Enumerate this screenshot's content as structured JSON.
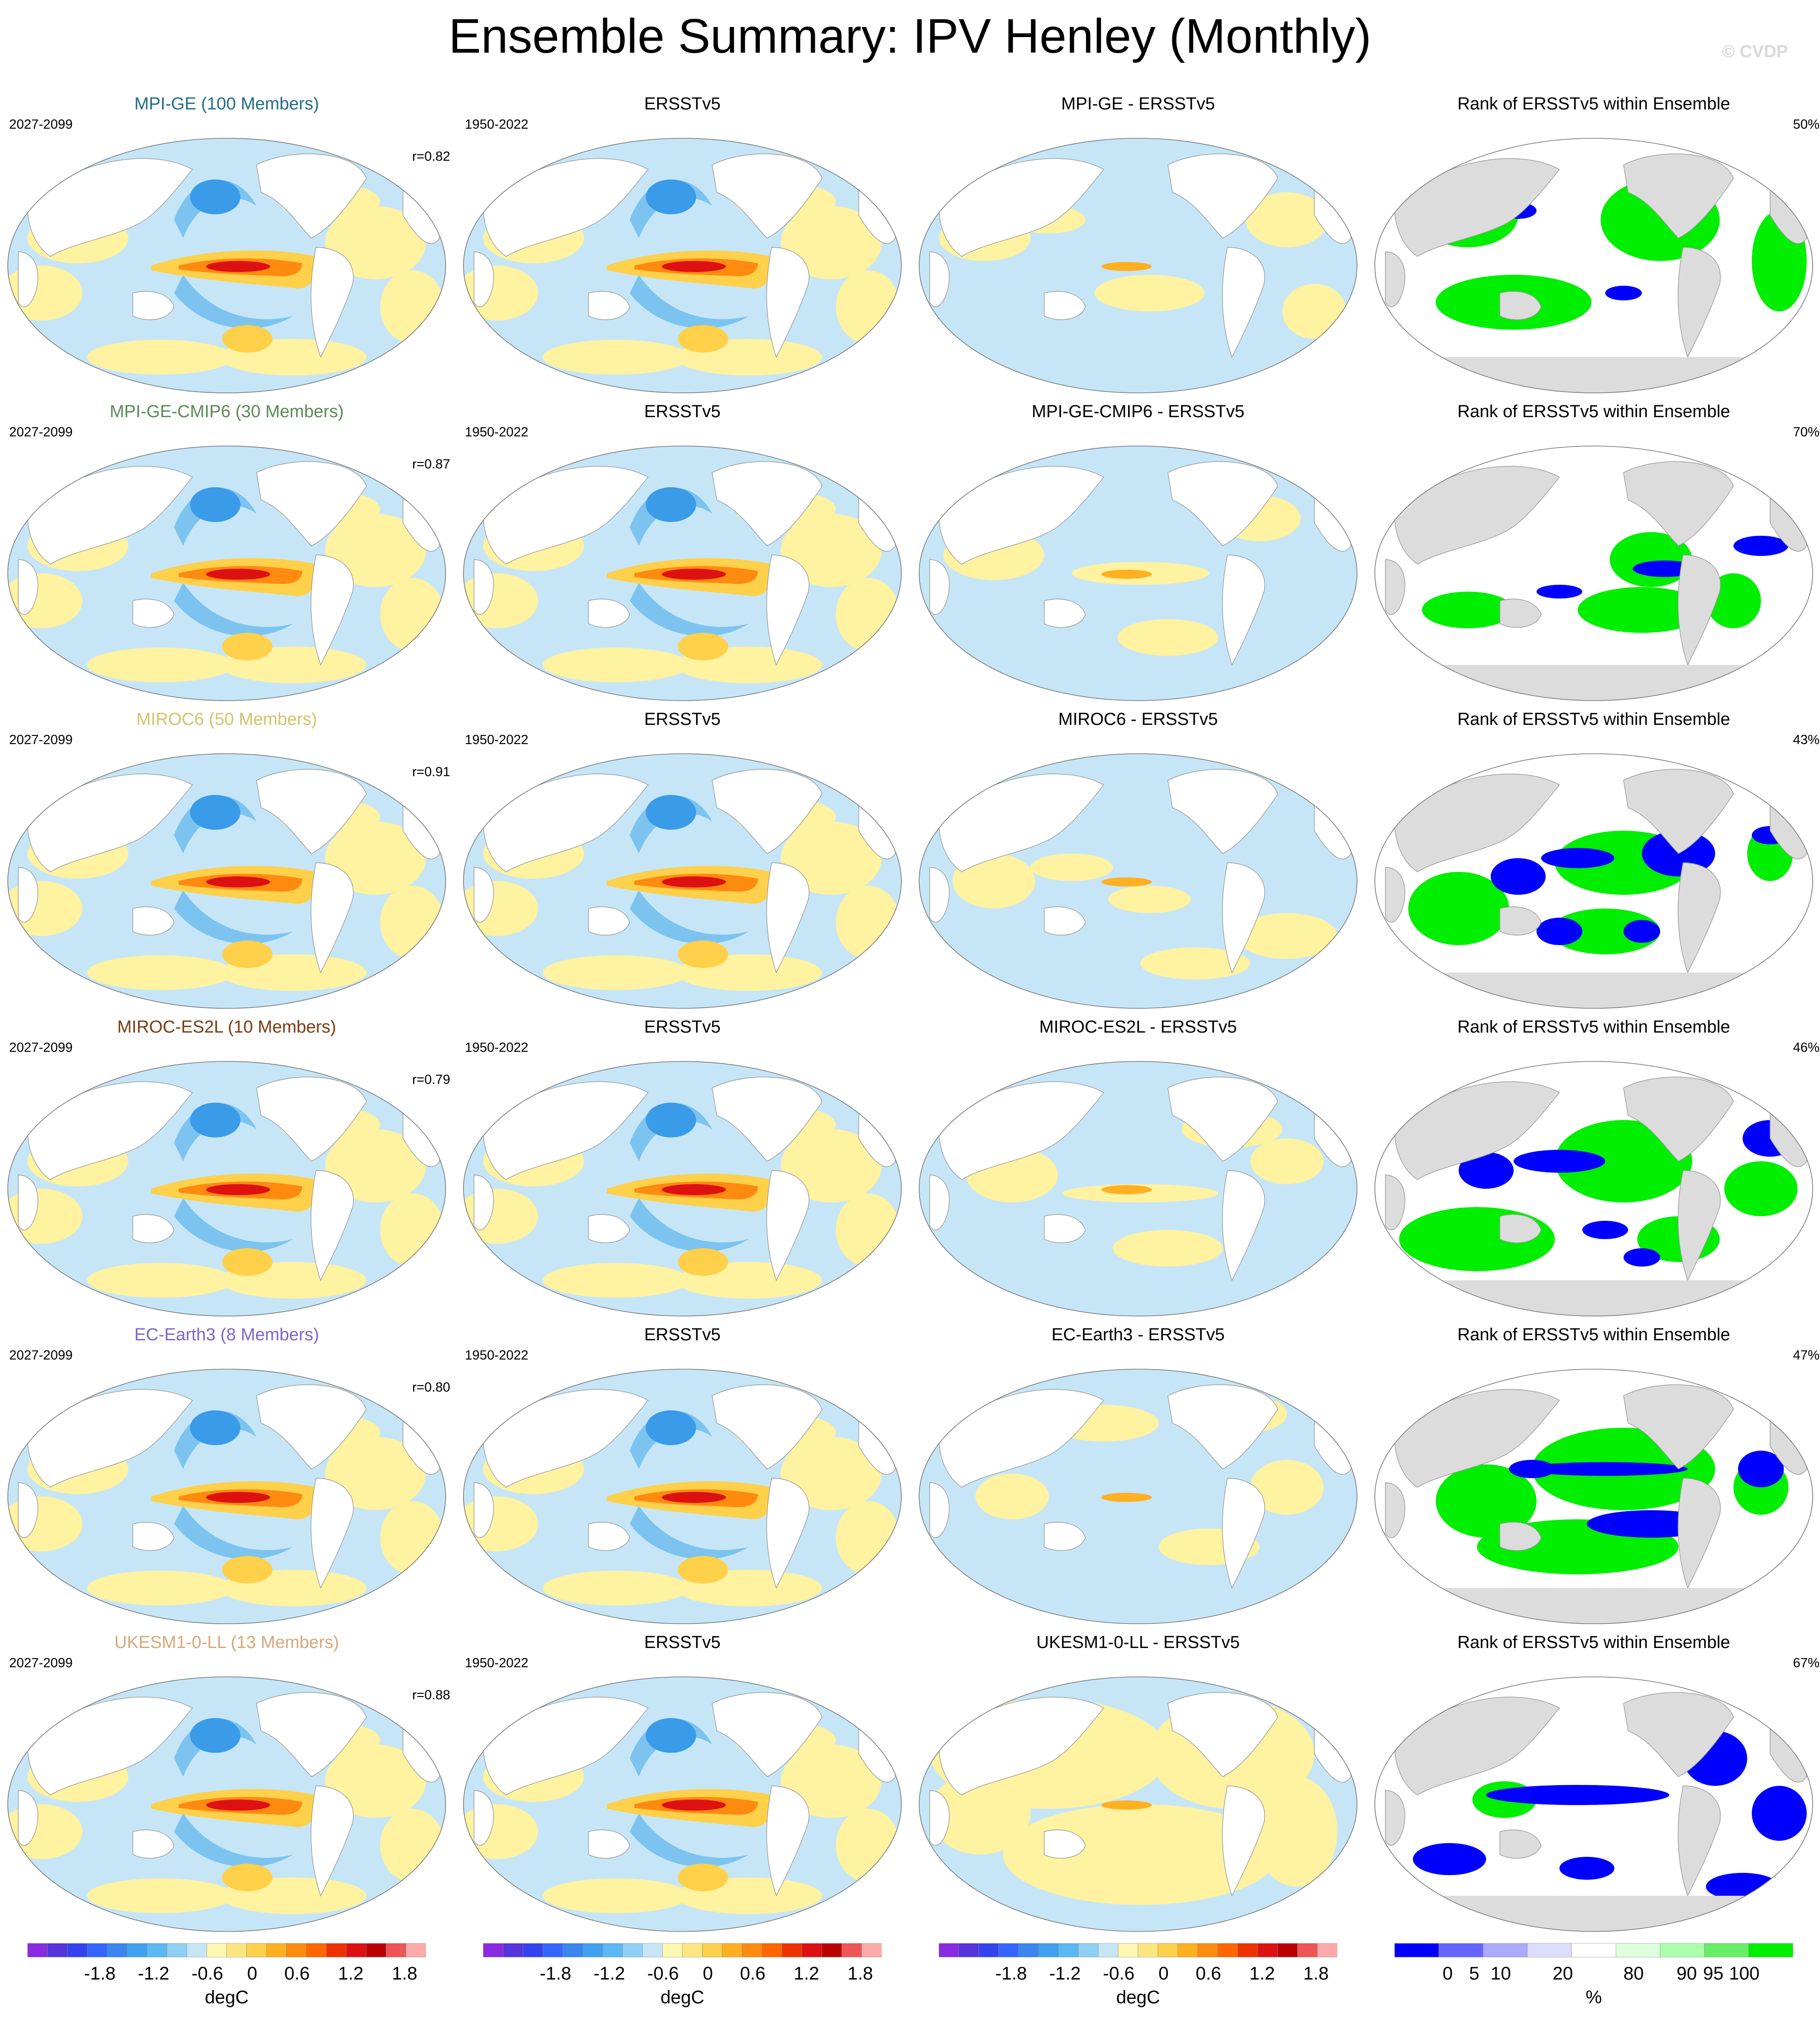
{
  "title": "Ensemble Summary: IPV Henley (Monthly)",
  "watermark": "© CVDP",
  "columns": {
    "obs_title": "ERSSTv5",
    "rank_title": "Rank of ERSSTv5 within Ensemble",
    "model_period": "2027-2099",
    "obs_period": "1950-2022"
  },
  "rows": [
    {
      "model": "MPI-GE (100 Members)",
      "model_color": "#1f6c8c",
      "r": "r=0.82",
      "diff_title": "MPI-GE - ERSSTv5",
      "rank_pct": "50%"
    },
    {
      "model": "MPI-GE-CMIP6 (30 Members)",
      "model_color": "#5a8a5a",
      "r": "r=0.87",
      "diff_title": "MPI-GE-CMIP6 - ERSSTv5",
      "rank_pct": "70%"
    },
    {
      "model": "MIROC6 (50 Members)",
      "model_color": "#d4c36a",
      "r": "r=0.91",
      "diff_title": "MIROC6 - ERSSTv5",
      "rank_pct": "43%"
    },
    {
      "model": "MIROC-ES2L (10 Members)",
      "model_color": "#7a3b12",
      "r": "r=0.79",
      "diff_title": "MIROC-ES2L - ERSSTv5",
      "rank_pct": "46%"
    },
    {
      "model": "EC-Earth3 (8 Members)",
      "model_color": "#7b67c9",
      "r": "r=0.80",
      "diff_title": "EC-Earth3 - ERSSTv5",
      "rank_pct": "47%"
    },
    {
      "model": "UKESM1-0-LL (13 Members)",
      "model_color": "#d6a877",
      "r": "r=0.88",
      "diff_title": "UKESM1-0-LL - ERSSTv5",
      "rank_pct": "67%"
    }
  ],
  "colorbars": {
    "degc_unit": "degC",
    "degc_ticks": [
      "-1.8",
      "-1.2",
      "-0.6",
      "0",
      "0.6",
      "1.2",
      "1.8"
    ],
    "degc_colors": [
      "#8a2be2",
      "#5533dd",
      "#3344ee",
      "#3366ff",
      "#3a86ee",
      "#40a0f0",
      "#5ab8f5",
      "#8fd0f5",
      "#c6e6f7",
      "#fff8b0",
      "#ffe680",
      "#ffd04a",
      "#ffb020",
      "#ff8a10",
      "#ff6600",
      "#ee3300",
      "#dd1111",
      "#bb0000",
      "#ee5555",
      "#ffaaaa"
    ],
    "rank_unit": "%",
    "rank_ticks": [
      "0",
      "5",
      "10",
      "20",
      "80",
      "90",
      "95",
      "100"
    ],
    "rank_colors": [
      "#0000ff",
      "#6666ff",
      "#aaaaff",
      "#ddddff",
      "#ffffff",
      "#ddffdd",
      "#aaffaa",
      "#66ee66",
      "#00ee00"
    ]
  },
  "chart_data": {
    "type": "heatmap",
    "description_fields": {
      "panel_types": [
        "Ensemble mean pattern",
        "ERSSTv5 observed pattern",
        "Model minus ERSSTv5 difference",
        "Rank of ERSSTv5 within ensemble"
      ]
    },
    "colorbar_range_degC": [
      -2.1,
      2.1
    ],
    "rank_ticks": [
      0,
      5,
      10,
      20,
      80,
      90,
      95,
      100
    ],
    "pattern_correlation": [
      0.82,
      0.87,
      0.91,
      0.79,
      0.8,
      0.88
    ],
    "rank_percent": [
      50,
      70,
      43,
      46,
      47,
      67
    ]
  }
}
